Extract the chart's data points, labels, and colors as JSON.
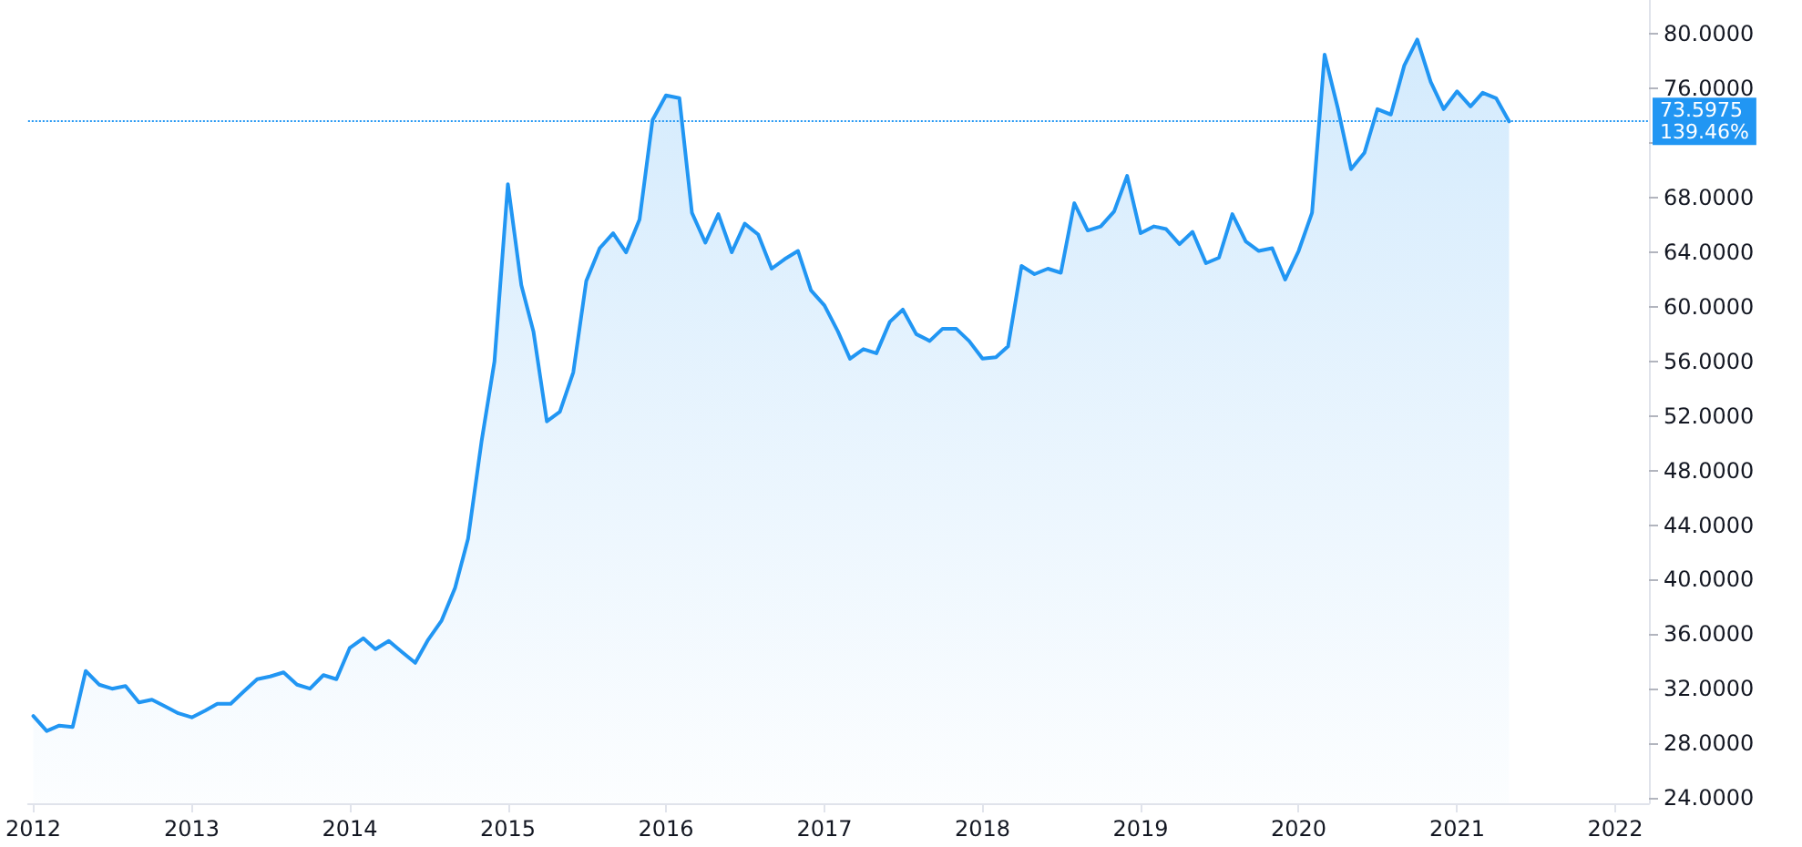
{
  "chart_data": {
    "type": "area",
    "x": [
      "2012-01",
      "2012-02",
      "2012-03",
      "2012-04",
      "2012-05",
      "2012-06",
      "2012-07",
      "2012-08",
      "2012-09",
      "2012-10",
      "2012-11",
      "2012-12",
      "2013-01",
      "2013-02",
      "2013-03",
      "2013-04",
      "2013-05",
      "2013-06",
      "2013-07",
      "2013-08",
      "2013-09",
      "2013-10",
      "2013-11",
      "2013-12",
      "2014-01",
      "2014-02",
      "2014-03",
      "2014-04",
      "2014-05",
      "2014-06",
      "2014-07",
      "2014-08",
      "2014-09",
      "2014-10",
      "2014-11",
      "2014-12",
      "2015-01",
      "2015-02",
      "2015-03",
      "2015-04",
      "2015-05",
      "2015-06",
      "2015-07",
      "2015-08",
      "2015-09",
      "2015-10",
      "2015-11",
      "2015-12",
      "2016-01",
      "2016-02",
      "2016-03",
      "2016-04",
      "2016-05",
      "2016-06",
      "2016-07",
      "2016-08",
      "2016-09",
      "2016-10",
      "2016-11",
      "2016-12",
      "2017-01",
      "2017-02",
      "2017-03",
      "2017-04",
      "2017-05",
      "2017-06",
      "2017-07",
      "2017-08",
      "2017-09",
      "2017-10",
      "2017-11",
      "2017-12",
      "2018-01",
      "2018-02",
      "2018-03",
      "2018-04",
      "2018-05",
      "2018-06",
      "2018-07",
      "2018-08",
      "2018-09",
      "2018-10",
      "2018-11",
      "2018-12",
      "2019-01",
      "2019-02",
      "2019-03",
      "2019-04",
      "2019-05",
      "2019-06",
      "2019-07",
      "2019-08",
      "2019-09",
      "2019-10",
      "2019-11",
      "2019-12",
      "2020-01",
      "2020-02",
      "2020-03",
      "2020-04",
      "2020-05",
      "2020-06",
      "2020-07",
      "2020-08",
      "2020-09",
      "2020-10",
      "2020-11",
      "2020-12",
      "2021-01",
      "2021-02",
      "2021-03",
      "2021-04",
      "2021-05"
    ],
    "series": [
      {
        "color": "#2196f3",
        "values": [
          30.0,
          28.9,
          29.3,
          29.2,
          33.3,
          32.3,
          32.0,
          32.2,
          31.0,
          31.2,
          30.7,
          30.2,
          29.9,
          30.4,
          30.9,
          30.9,
          31.8,
          32.7,
          32.9,
          33.2,
          32.3,
          32.0,
          33.0,
          32.7,
          35.0,
          35.7,
          34.9,
          35.5,
          34.7,
          33.9,
          35.6,
          37.0,
          39.4,
          43.0,
          50.1,
          56.0,
          69.0,
          61.6,
          58.2,
          51.6,
          52.3,
          55.2,
          61.9,
          64.3,
          65.4,
          64.0,
          66.4,
          73.7,
          75.5,
          75.3,
          66.9,
          64.7,
          66.8,
          64.0,
          66.1,
          65.3,
          62.8,
          63.5,
          64.1,
          61.2,
          60.1,
          58.2,
          56.2,
          56.9,
          56.6,
          58.9,
          59.8,
          58.0,
          57.5,
          58.4,
          58.4,
          57.5,
          56.2,
          56.3,
          57.1,
          63.0,
          62.4,
          62.8,
          62.5,
          67.6,
          65.6,
          65.9,
          67.0,
          69.6,
          65.4,
          65.9,
          65.7,
          64.6,
          65.5,
          63.2,
          63.6,
          66.8,
          64.8,
          64.1,
          64.3,
          62.0,
          64.1,
          66.9,
          78.5,
          74.5,
          70.1,
          71.3,
          74.5,
          74.1,
          77.7,
          79.6,
          76.5,
          74.5,
          75.8,
          74.7,
          75.7,
          75.3,
          73.5975
        ]
      }
    ],
    "xlim": [
      "2011-12-20",
      "2022-03-20"
    ],
    "xticks": [
      {
        "value": "2012",
        "label": "2012"
      },
      {
        "value": "2013",
        "label": "2013"
      },
      {
        "value": "2014",
        "label": "2014"
      },
      {
        "value": "2015",
        "label": "2015"
      },
      {
        "value": "2016",
        "label": "2016"
      },
      {
        "value": "2017",
        "label": "2017"
      },
      {
        "value": "2018",
        "label": "2018"
      },
      {
        "value": "2019",
        "label": "2019"
      },
      {
        "value": "2020",
        "label": "2020"
      },
      {
        "value": "2021",
        "label": "2021"
      },
      {
        "value": "2022",
        "label": "2022"
      }
    ],
    "ylim": [
      23.6,
      82.5
    ],
    "yticks": [
      {
        "value": 24,
        "label": "24.0000"
      },
      {
        "value": 28,
        "label": "28.0000"
      },
      {
        "value": 32,
        "label": "32.0000"
      },
      {
        "value": 36,
        "label": "36.0000"
      },
      {
        "value": 40,
        "label": "40.0000"
      },
      {
        "value": 44,
        "label": "44.0000"
      },
      {
        "value": 48,
        "label": "48.0000"
      },
      {
        "value": 52,
        "label": "52.0000"
      },
      {
        "value": 56,
        "label": "56.0000"
      },
      {
        "value": 60,
        "label": "60.0000"
      },
      {
        "value": 64,
        "label": "64.0000"
      },
      {
        "value": 68,
        "label": "68.0000"
      },
      {
        "value": 72,
        "label": null
      },
      {
        "value": 76,
        "label": "76.0000"
      },
      {
        "value": 80,
        "label": "80.0000"
      }
    ],
    "ref_lines": [
      {
        "axis": "y",
        "value": 73.5975,
        "label": "73.5975",
        "color": "#2196f3",
        "line_style": "dotted"
      }
    ],
    "annotations": [
      "139.46%"
    ],
    "grid": false,
    "marker": "none",
    "line_style": "solid"
  }
}
